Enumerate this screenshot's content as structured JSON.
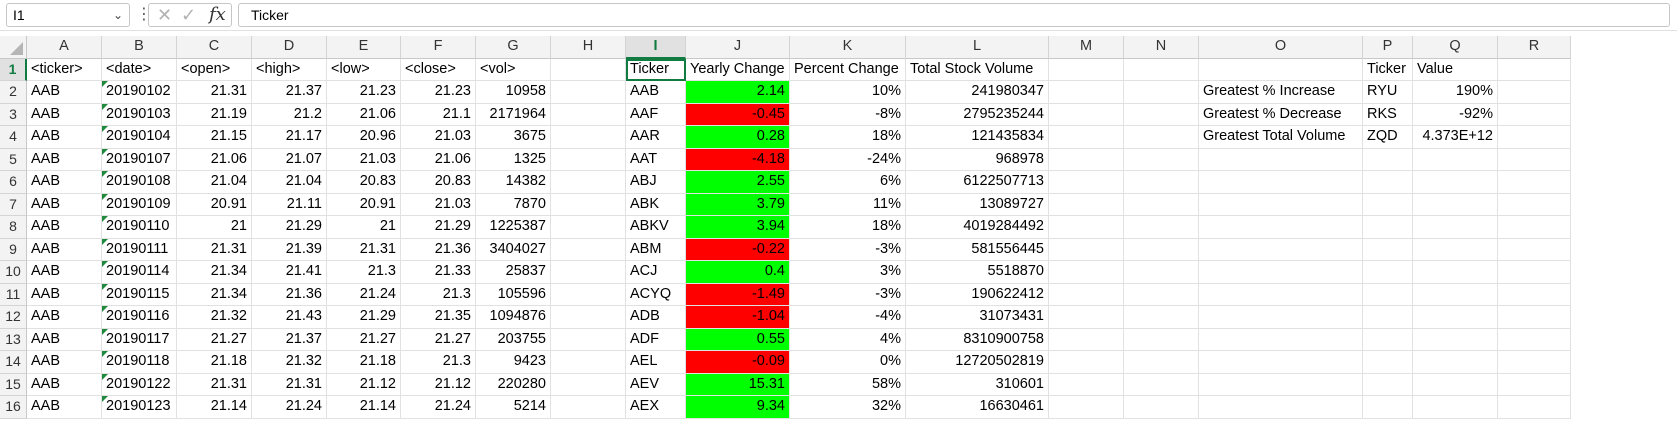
{
  "formula_bar": {
    "name_box": "I1",
    "formula": "Ticker",
    "dropdown_icon": "chevron-down-icon",
    "more_icon": "vertical-ellipsis-icon",
    "cancel_icon": "x-icon",
    "enter_icon": "checkmark-icon",
    "fx_label": "fx"
  },
  "colors": {
    "positive": "#00ff00",
    "negative": "#ff0000",
    "selection": "#107c41"
  },
  "columns": [
    "A",
    "B",
    "C",
    "D",
    "E",
    "F",
    "G",
    "H",
    "I",
    "J",
    "K",
    "L",
    "M",
    "N",
    "O",
    "P",
    "Q",
    "R"
  ],
  "rows": [
    [
      "<ticker>",
      "<date>",
      "<open>",
      "<high>",
      "<low>",
      "<close>",
      "<vol>",
      "",
      "Ticker",
      "Yearly Change",
      "Percent Change",
      "Total Stock Volume",
      "",
      "",
      "",
      "Ticker",
      "Value",
      ""
    ],
    [
      "AAB",
      "20190102",
      "21.31",
      "21.37",
      "21.23",
      "21.23",
      "10958",
      "",
      "AAB",
      "2.14",
      "10%",
      "241980347",
      "",
      "",
      "Greatest % Increase",
      "RYU",
      "190%",
      ""
    ],
    [
      "AAB",
      "20190103",
      "21.19",
      "21.2",
      "21.06",
      "21.1",
      "2171964",
      "",
      "AAF",
      "-0.45",
      "-8%",
      "2795235244",
      "",
      "",
      "Greatest % Decrease",
      "RKS",
      "-92%",
      ""
    ],
    [
      "AAB",
      "20190104",
      "21.15",
      "21.17",
      "20.96",
      "21.03",
      "3675",
      "",
      "AAR",
      "0.28",
      "18%",
      "121435834",
      "",
      "",
      "Greatest Total Volume",
      "ZQD",
      "4.373E+12",
      ""
    ],
    [
      "AAB",
      "20190107",
      "21.06",
      "21.07",
      "21.03",
      "21.06",
      "1325",
      "",
      "AAT",
      "-4.18",
      "-24%",
      "968978",
      "",
      "",
      "",
      "",
      "",
      ""
    ],
    [
      "AAB",
      "20190108",
      "21.04",
      "21.04",
      "20.83",
      "20.83",
      "14382",
      "",
      "ABJ",
      "2.55",
      "6%",
      "6122507713",
      "",
      "",
      "",
      "",
      "",
      ""
    ],
    [
      "AAB",
      "20190109",
      "20.91",
      "21.11",
      "20.91",
      "21.03",
      "7870",
      "",
      "ABK",
      "3.79",
      "11%",
      "13089727",
      "",
      "",
      "",
      "",
      "",
      ""
    ],
    [
      "AAB",
      "20190110",
      "21",
      "21.29",
      "21",
      "21.29",
      "1225387",
      "",
      "ABKV",
      "3.94",
      "18%",
      "4019284492",
      "",
      "",
      "",
      "",
      "",
      ""
    ],
    [
      "AAB",
      "20190111",
      "21.31",
      "21.39",
      "21.31",
      "21.36",
      "3404027",
      "",
      "ABM",
      "-0.22",
      "-3%",
      "581556445",
      "",
      "",
      "",
      "",
      "",
      ""
    ],
    [
      "AAB",
      "20190114",
      "21.34",
      "21.41",
      "21.3",
      "21.33",
      "25837",
      "",
      "ACJ",
      "0.4",
      "3%",
      "5518870",
      "",
      "",
      "",
      "",
      "",
      ""
    ],
    [
      "AAB",
      "20190115",
      "21.34",
      "21.36",
      "21.24",
      "21.3",
      "105596",
      "",
      "ACYQ",
      "-1.49",
      "-3%",
      "190622412",
      "",
      "",
      "",
      "",
      "",
      ""
    ],
    [
      "AAB",
      "20190116",
      "21.32",
      "21.43",
      "21.29",
      "21.35",
      "1094876",
      "",
      "ADB",
      "-1.04",
      "-4%",
      "31073431",
      "",
      "",
      "",
      "",
      "",
      ""
    ],
    [
      "AAB",
      "20190117",
      "21.27",
      "21.37",
      "21.27",
      "21.27",
      "203755",
      "",
      "ADF",
      "0.55",
      "4%",
      "8310900758",
      "",
      "",
      "",
      "",
      "",
      ""
    ],
    [
      "AAB",
      "20190118",
      "21.18",
      "21.32",
      "21.18",
      "21.3",
      "9423",
      "",
      "AEL",
      "-0.09",
      "0%",
      "12720502819",
      "",
      "",
      "",
      "",
      "",
      ""
    ],
    [
      "AAB",
      "20190122",
      "21.31",
      "21.31",
      "21.12",
      "21.12",
      "220280",
      "",
      "AEV",
      "15.31",
      "58%",
      "310601",
      "",
      "",
      "",
      "",
      "",
      ""
    ],
    [
      "AAB",
      "20190123",
      "21.14",
      "21.24",
      "21.14",
      "21.24",
      "5214",
      "",
      "AEX",
      "9.34",
      "32%",
      "16630461",
      "",
      "",
      "",
      "",
      "",
      ""
    ]
  ]
}
